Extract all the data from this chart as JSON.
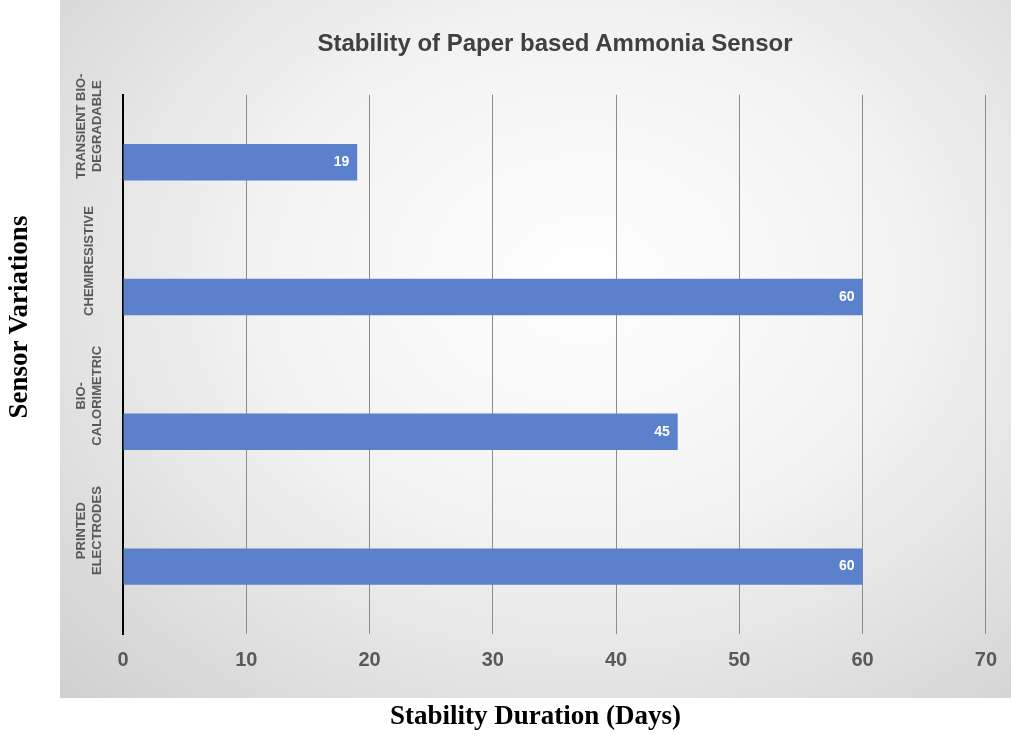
{
  "chart_data": {
    "type": "bar",
    "orientation": "horizontal",
    "title": "Stability of Paper based Ammonia Sensor",
    "xlabel": "Stability Duration (Days)",
    "ylabel": "Sensor Variations",
    "categories": [
      "TRANSIENT BIO-DEGRADABLE",
      "CHEMIRESISTIVE",
      "BIO-CALORIMETRIC",
      "PRINTED ELECTRODES"
    ],
    "values": [
      19,
      60,
      45,
      60
    ],
    "color": "#5b80cc",
    "xlim": [
      0,
      70
    ],
    "xticks": [
      0,
      10,
      20,
      30,
      40,
      50,
      60,
      70
    ],
    "grid": "x",
    "data_labels": true,
    "legend": false
  }
}
